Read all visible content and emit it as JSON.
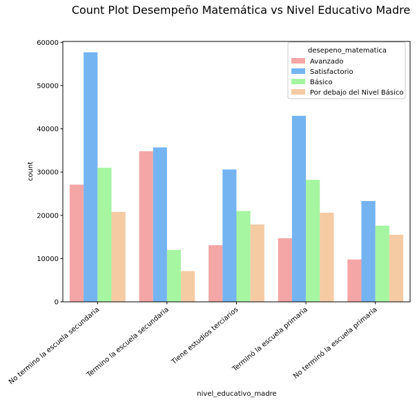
{
  "chart_data": {
    "type": "bar",
    "title": "Count Plot Desempeño Matemática vs Nivel Educativo Madre",
    "xlabel": "nivel_educativo_madre",
    "ylabel": "count",
    "ylim": [
      0,
      60000
    ],
    "yticks": [
      0,
      10000,
      20000,
      30000,
      40000,
      50000,
      60000
    ],
    "grid": false,
    "legend": {
      "title": "desepeno_matematica",
      "placement": "top-right"
    },
    "categories": [
      "No termino la escuela secundaria",
      "Termino la escuela secundaria",
      "Tiene estudios terciarios",
      "Terminó la escuela primaria",
      "No terminó la escuela primaria"
    ],
    "series": [
      {
        "name": "Avanzado",
        "color": "#F4A6A6",
        "values": [
          27100,
          34800,
          13100,
          14700,
          9800
        ]
      },
      {
        "name": "Satisfactorio",
        "color": "#74B4F0",
        "values": [
          57700,
          35700,
          30600,
          43000,
          23300
        ]
      },
      {
        "name": "Básico",
        "color": "#A6F5A1",
        "values": [
          31000,
          12000,
          21000,
          28200,
          17600
        ]
      },
      {
        "name": "Por debajo del Nivel Básico",
        "color": "#F5CBA4",
        "values": [
          20800,
          7100,
          17900,
          20600,
          15500
        ]
      }
    ]
  }
}
